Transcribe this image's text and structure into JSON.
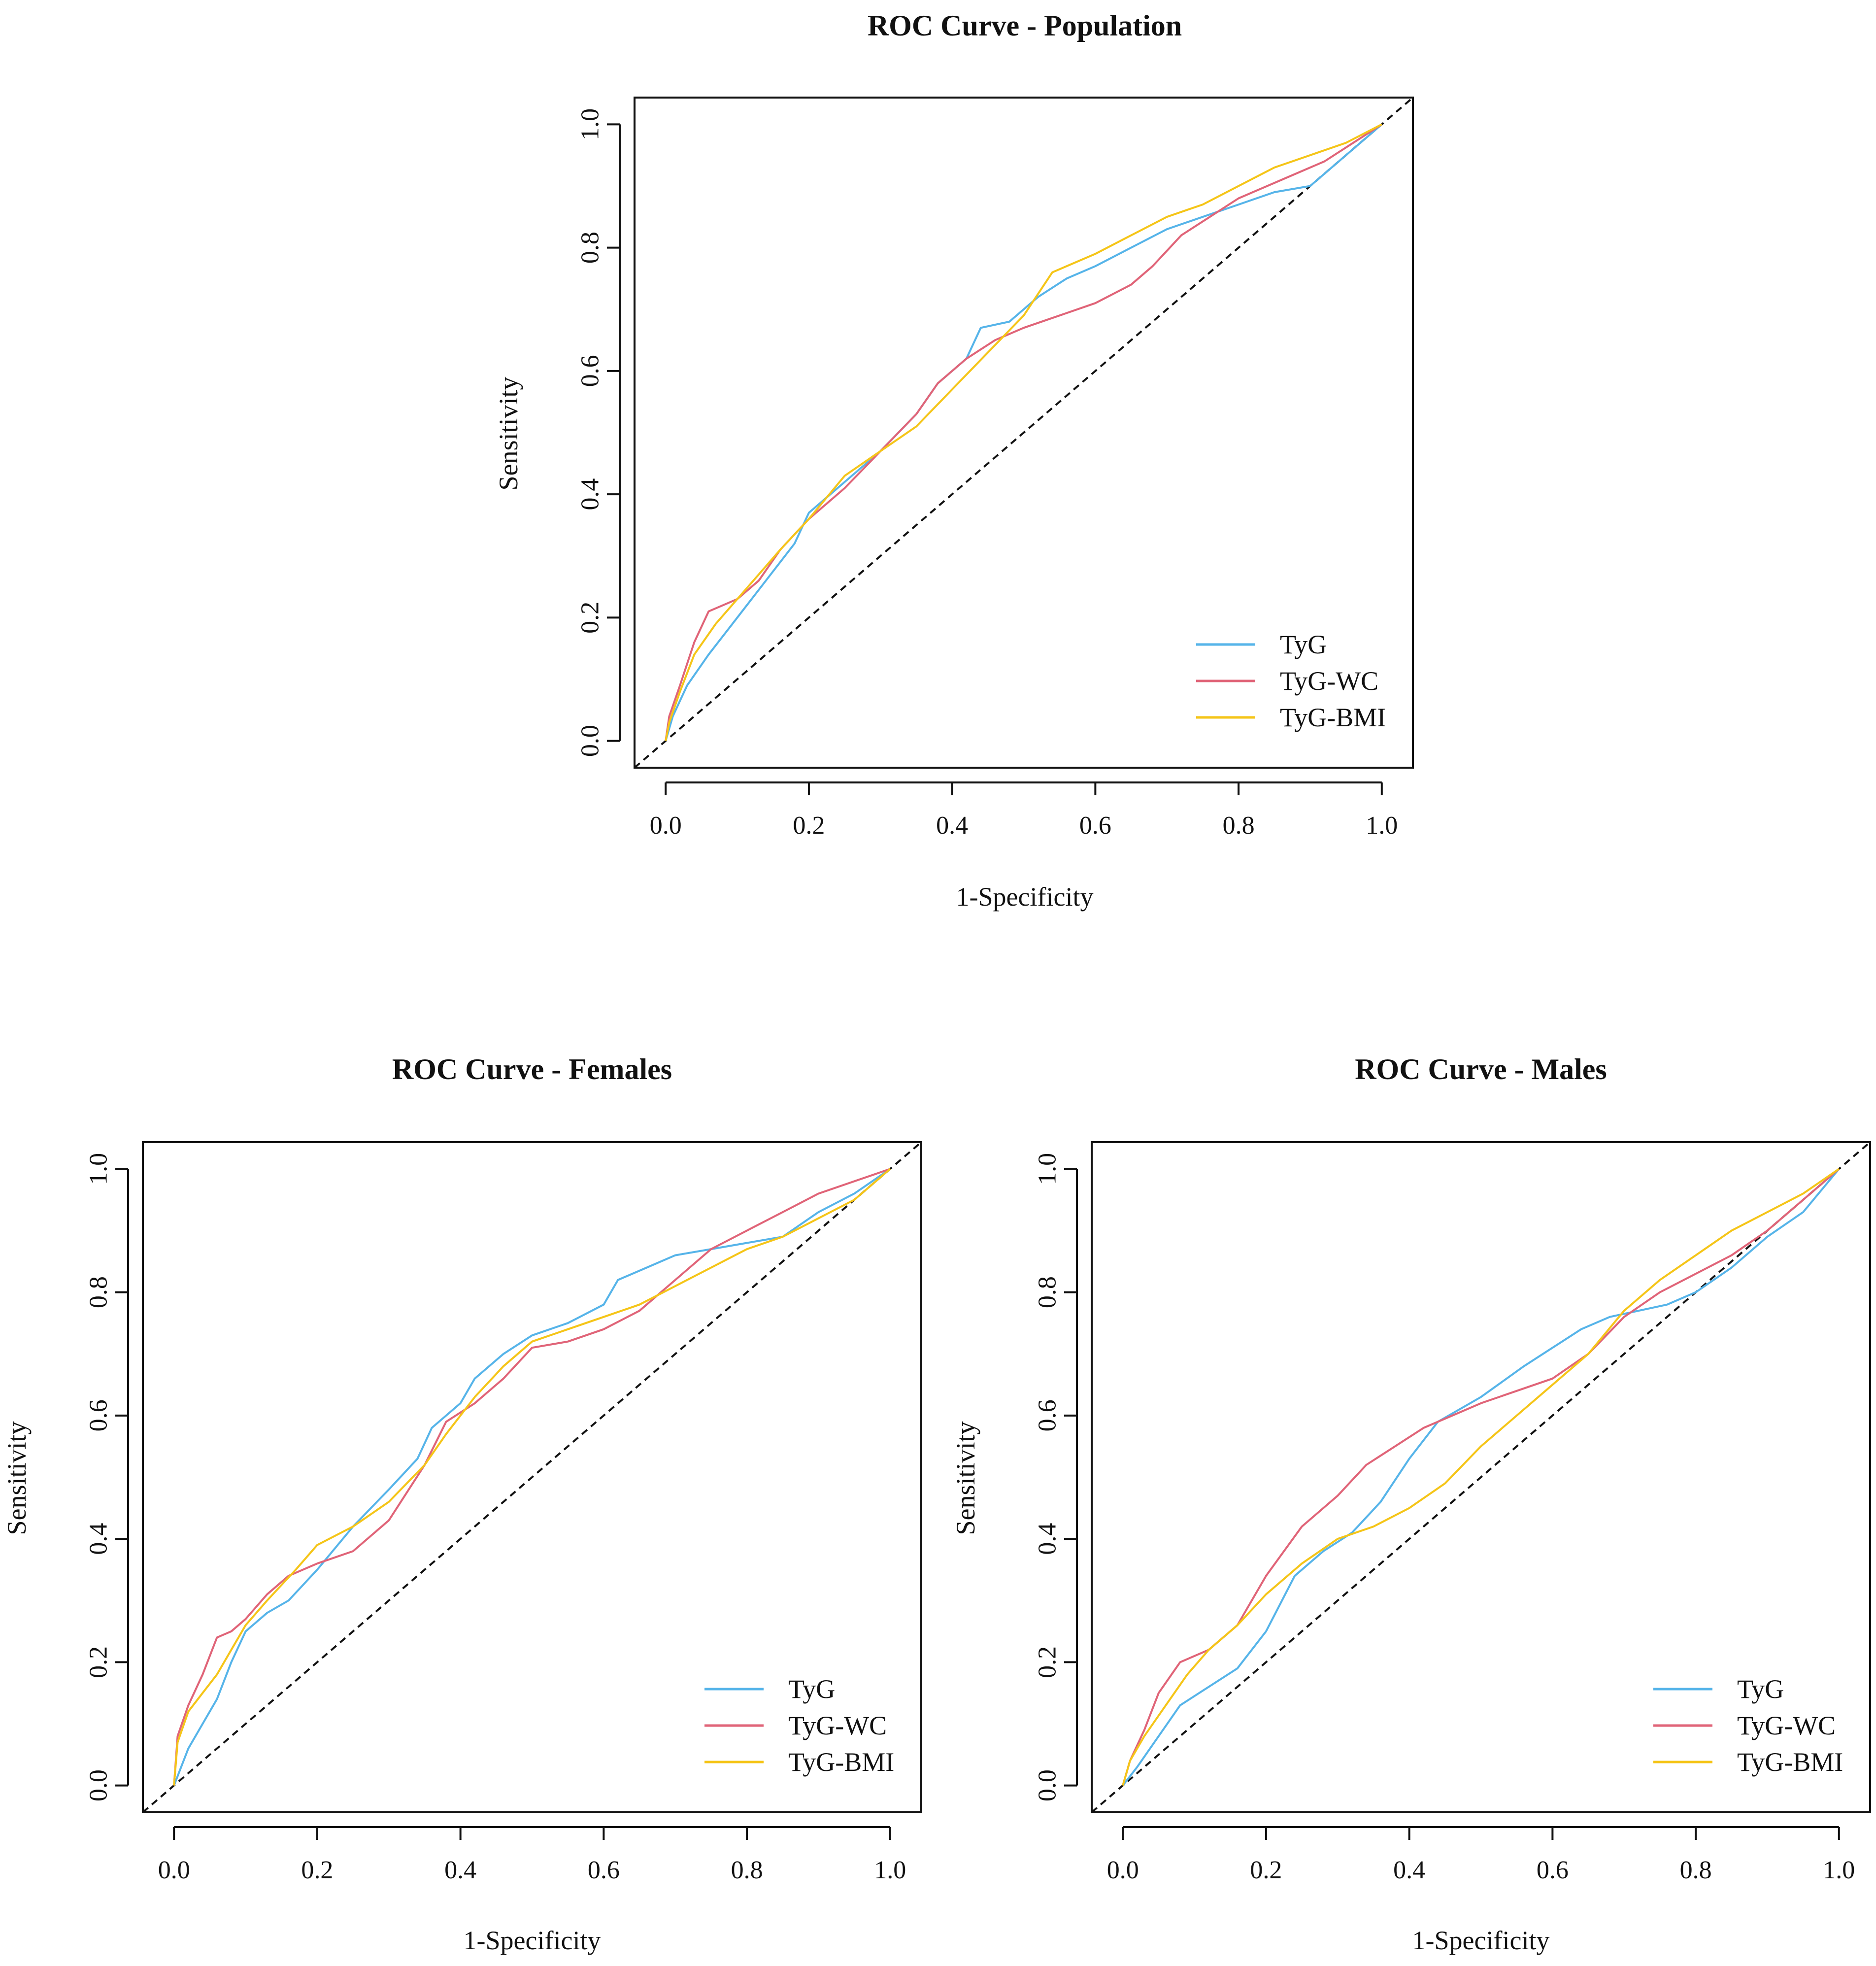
{
  "chart_data": [
    {
      "type": "line",
      "title": "ROC Curve - Population",
      "xlabel": "1-Specificity",
      "ylabel": "Sensitivity",
      "xlim": [
        0,
        1
      ],
      "ylim": [
        0,
        1
      ],
      "x_ticks": [
        "0.0",
        "0.2",
        "0.4",
        "0.6",
        "0.8",
        "1.0"
      ],
      "y_ticks": [
        "0.0",
        "0.2",
        "0.4",
        "0.6",
        "0.8",
        "1.0"
      ],
      "legend_position": "bottom-right",
      "reference_line": "diagonal",
      "series": [
        {
          "name": "TyG",
          "color": "#56B4E9",
          "x": [
            0,
            0.01,
            0.03,
            0.06,
            0.1,
            0.14,
            0.18,
            0.2,
            0.25,
            0.3,
            0.35,
            0.38,
            0.42,
            0.44,
            0.48,
            0.52,
            0.56,
            0.6,
            0.65,
            0.7,
            0.75,
            0.8,
            0.85,
            0.9,
            0.95,
            1.0
          ],
          "y": [
            0,
            0.04,
            0.09,
            0.14,
            0.2,
            0.26,
            0.32,
            0.37,
            0.42,
            0.47,
            0.53,
            0.58,
            0.62,
            0.67,
            0.68,
            0.72,
            0.75,
            0.77,
            0.8,
            0.83,
            0.85,
            0.87,
            0.89,
            0.9,
            0.95,
            1.0
          ]
        },
        {
          "name": "TyG-WC",
          "color": "#E06478",
          "x": [
            0,
            0.005,
            0.02,
            0.04,
            0.06,
            0.08,
            0.1,
            0.13,
            0.16,
            0.2,
            0.25,
            0.3,
            0.35,
            0.38,
            0.42,
            0.46,
            0.5,
            0.55,
            0.6,
            0.65,
            0.68,
            0.72,
            0.76,
            0.8,
            0.86,
            0.92,
            0.96,
            1.0
          ],
          "y": [
            0,
            0.04,
            0.09,
            0.16,
            0.21,
            0.22,
            0.23,
            0.26,
            0.31,
            0.36,
            0.41,
            0.47,
            0.53,
            0.58,
            0.62,
            0.65,
            0.67,
            0.69,
            0.71,
            0.74,
            0.77,
            0.82,
            0.85,
            0.88,
            0.91,
            0.94,
            0.97,
            1.0
          ]
        },
        {
          "name": "TyG-BMI",
          "color": "#F5C518",
          "x": [
            0,
            0.005,
            0.02,
            0.04,
            0.07,
            0.1,
            0.13,
            0.16,
            0.2,
            0.25,
            0.3,
            0.35,
            0.4,
            0.45,
            0.5,
            0.54,
            0.6,
            0.65,
            0.7,
            0.75,
            0.8,
            0.85,
            0.9,
            0.95,
            1.0
          ],
          "y": [
            0,
            0.03,
            0.08,
            0.14,
            0.19,
            0.23,
            0.27,
            0.31,
            0.36,
            0.43,
            0.47,
            0.51,
            0.57,
            0.63,
            0.69,
            0.76,
            0.79,
            0.82,
            0.85,
            0.87,
            0.9,
            0.93,
            0.95,
            0.97,
            1.0
          ]
        }
      ]
    },
    {
      "type": "line",
      "title": "ROC Curve - Females",
      "xlabel": "1-Specificity",
      "ylabel": "Sensitivity",
      "xlim": [
        0,
        1
      ],
      "ylim": [
        0,
        1
      ],
      "x_ticks": [
        "0.0",
        "0.2",
        "0.4",
        "0.6",
        "0.8",
        "1.0"
      ],
      "y_ticks": [
        "0.0",
        "0.2",
        "0.4",
        "0.6",
        "0.8",
        "1.0"
      ],
      "legend_position": "bottom-right",
      "reference_line": "diagonal",
      "series": [
        {
          "name": "TyG",
          "color": "#56B4E9",
          "x": [
            0,
            0.02,
            0.04,
            0.06,
            0.08,
            0.1,
            0.13,
            0.16,
            0.2,
            0.25,
            0.3,
            0.34,
            0.36,
            0.4,
            0.42,
            0.46,
            0.5,
            0.55,
            0.6,
            0.62,
            0.66,
            0.7,
            0.75,
            0.8,
            0.85,
            0.9,
            0.95,
            1.0
          ],
          "y": [
            0,
            0.06,
            0.1,
            0.14,
            0.2,
            0.25,
            0.28,
            0.3,
            0.35,
            0.42,
            0.48,
            0.53,
            0.58,
            0.62,
            0.66,
            0.7,
            0.73,
            0.75,
            0.78,
            0.82,
            0.84,
            0.86,
            0.87,
            0.88,
            0.89,
            0.93,
            0.96,
            1.0
          ]
        },
        {
          "name": "TyG-WC",
          "color": "#E06478",
          "x": [
            0,
            0.005,
            0.02,
            0.04,
            0.06,
            0.08,
            0.1,
            0.13,
            0.16,
            0.2,
            0.25,
            0.3,
            0.35,
            0.38,
            0.42,
            0.46,
            0.5,
            0.55,
            0.6,
            0.65,
            0.7,
            0.75,
            0.8,
            0.85,
            0.9,
            0.95,
            1.0
          ],
          "y": [
            0,
            0.08,
            0.13,
            0.18,
            0.24,
            0.25,
            0.27,
            0.31,
            0.34,
            0.36,
            0.38,
            0.43,
            0.52,
            0.59,
            0.62,
            0.66,
            0.71,
            0.72,
            0.74,
            0.77,
            0.82,
            0.87,
            0.9,
            0.93,
            0.96,
            0.98,
            1.0
          ]
        },
        {
          "name": "TyG-BMI",
          "color": "#F5C518",
          "x": [
            0,
            0.005,
            0.02,
            0.04,
            0.06,
            0.08,
            0.1,
            0.13,
            0.17,
            0.2,
            0.25,
            0.3,
            0.35,
            0.38,
            0.42,
            0.46,
            0.5,
            0.55,
            0.6,
            0.65,
            0.7,
            0.75,
            0.8,
            0.85,
            0.9,
            0.95,
            1.0
          ],
          "y": [
            0,
            0.07,
            0.12,
            0.15,
            0.18,
            0.22,
            0.26,
            0.3,
            0.35,
            0.39,
            0.42,
            0.46,
            0.52,
            0.57,
            0.63,
            0.68,
            0.72,
            0.74,
            0.76,
            0.78,
            0.81,
            0.84,
            0.87,
            0.89,
            0.92,
            0.95,
            1.0
          ]
        }
      ]
    },
    {
      "type": "line",
      "title": "ROC Curve - Males",
      "xlabel": "1-Specificity",
      "ylabel": "Sensitivity",
      "xlim": [
        0,
        1
      ],
      "ylim": [
        0,
        1
      ],
      "x_ticks": [
        "0.0",
        "0.2",
        "0.4",
        "0.6",
        "0.8",
        "1.0"
      ],
      "y_ticks": [
        "0.0",
        "0.2",
        "0.4",
        "0.6",
        "0.8",
        "1.0"
      ],
      "legend_position": "bottom-right",
      "reference_line": "diagonal",
      "series": [
        {
          "name": "TyG",
          "color": "#56B4E9",
          "x": [
            0,
            0.02,
            0.05,
            0.08,
            0.12,
            0.16,
            0.2,
            0.24,
            0.28,
            0.32,
            0.36,
            0.4,
            0.44,
            0.5,
            0.56,
            0.6,
            0.64,
            0.68,
            0.72,
            0.76,
            0.8,
            0.85,
            0.9,
            0.95,
            1.0
          ],
          "y": [
            0,
            0.03,
            0.08,
            0.13,
            0.16,
            0.19,
            0.25,
            0.34,
            0.38,
            0.41,
            0.46,
            0.53,
            0.59,
            0.63,
            0.68,
            0.71,
            0.74,
            0.76,
            0.77,
            0.78,
            0.8,
            0.84,
            0.89,
            0.93,
            1.0
          ]
        },
        {
          "name": "TyG-WC",
          "color": "#E06478",
          "x": [
            0,
            0.01,
            0.03,
            0.05,
            0.08,
            0.12,
            0.16,
            0.2,
            0.25,
            0.3,
            0.34,
            0.38,
            0.42,
            0.46,
            0.5,
            0.55,
            0.6,
            0.65,
            0.7,
            0.75,
            0.8,
            0.85,
            0.9,
            0.95,
            1.0
          ],
          "y": [
            0,
            0.04,
            0.09,
            0.15,
            0.2,
            0.22,
            0.26,
            0.34,
            0.42,
            0.47,
            0.52,
            0.55,
            0.58,
            0.6,
            0.62,
            0.64,
            0.66,
            0.7,
            0.76,
            0.8,
            0.83,
            0.86,
            0.9,
            0.95,
            1.0
          ]
        },
        {
          "name": "TyG-BMI",
          "color": "#F5C518",
          "x": [
            0,
            0.01,
            0.03,
            0.06,
            0.09,
            0.12,
            0.16,
            0.2,
            0.25,
            0.3,
            0.35,
            0.4,
            0.45,
            0.5,
            0.55,
            0.6,
            0.65,
            0.7,
            0.75,
            0.8,
            0.85,
            0.9,
            0.95,
            1.0
          ],
          "y": [
            0,
            0.04,
            0.08,
            0.13,
            0.18,
            0.22,
            0.26,
            0.31,
            0.36,
            0.4,
            0.42,
            0.45,
            0.49,
            0.55,
            0.6,
            0.65,
            0.7,
            0.77,
            0.82,
            0.86,
            0.9,
            0.93,
            0.96,
            1.0
          ]
        }
      ]
    }
  ]
}
